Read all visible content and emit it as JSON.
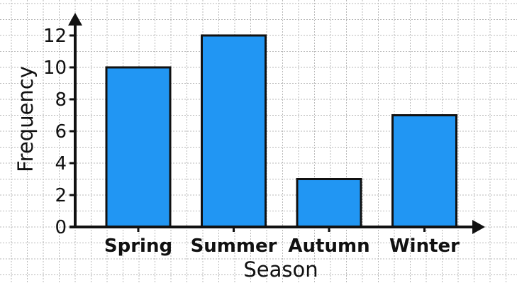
{
  "chart_data": {
    "type": "bar",
    "categories": [
      "Spring",
      "Summer",
      "Autumn",
      "Winter"
    ],
    "values": [
      10,
      12,
      3,
      7
    ],
    "title": "",
    "xlabel": "Season",
    "ylabel": "Frequency",
    "ylim": [
      0,
      12
    ],
    "yticks": [
      "0",
      "2",
      "4",
      "6",
      "8",
      "10",
      "12"
    ],
    "grid": true,
    "legend": "none",
    "bar_color": "#2196f3",
    "bar_edge_color": "#111111",
    "axis_color": "#111111",
    "grid_color": "#b8b8b8"
  }
}
